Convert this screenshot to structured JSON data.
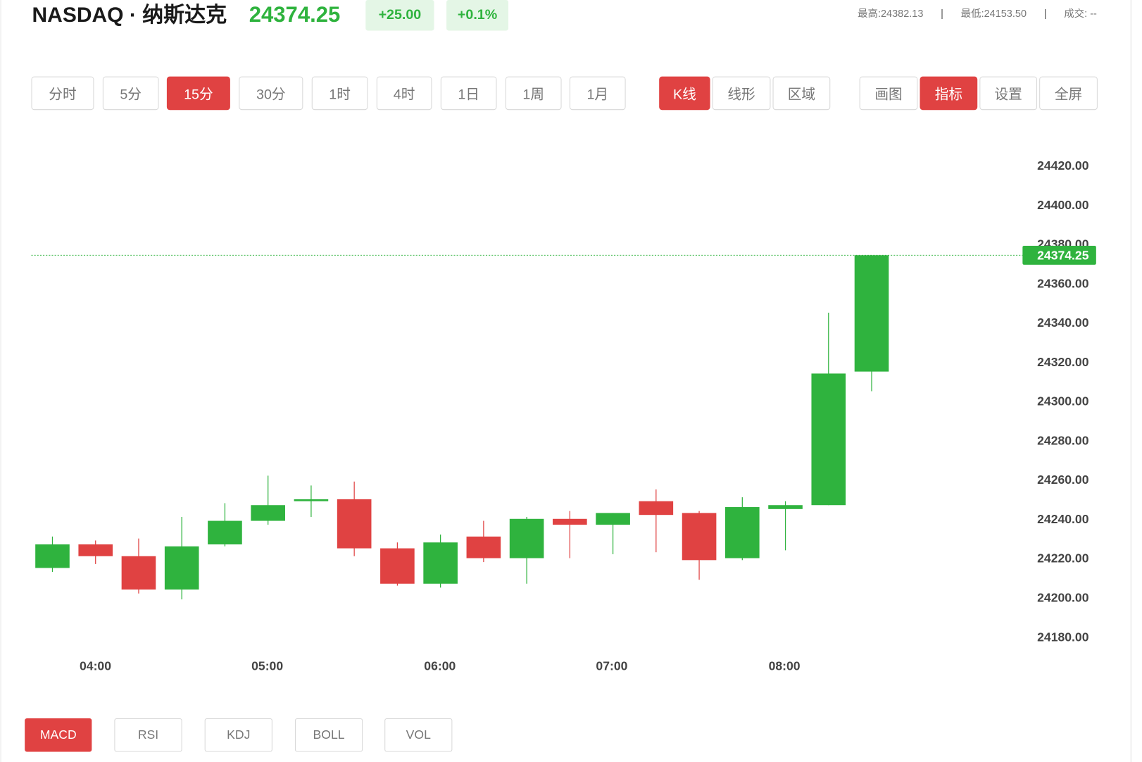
{
  "header": {
    "title": "NASDAQ · 纳斯达克",
    "price": "24374.25",
    "change": "+25.00",
    "change_pct": "+0.1%",
    "high_label": "最高:",
    "high_value": "24382.13",
    "low_label": "最低:",
    "low_value": "24153.50",
    "volume_label": "成交:",
    "volume_value": "--",
    "separator": "|"
  },
  "intervals": [
    "分时",
    "5分",
    "15分",
    "30分",
    "1时",
    "4时",
    "1日",
    "1周",
    "1月"
  ],
  "active_interval": "15分",
  "chart_types": [
    "K线",
    "线形",
    "区域"
  ],
  "active_chart_type": "K线",
  "tools": [
    "画图",
    "指标",
    "设置",
    "全屏"
  ],
  "active_tool": "指标",
  "indicators": [
    "MACD",
    "RSI",
    "KDJ",
    "BOLL",
    "VOL"
  ],
  "active_indicator": "MACD",
  "colors": {
    "up": "#2fb33e",
    "down": "#e04242",
    "accent": "#e04242"
  },
  "chart_data": {
    "type": "candlestick",
    "y_ticks": [
      "24420.00",
      "24400.00",
      "24380.00",
      "24360.00",
      "24340.00",
      "24320.00",
      "24300.00",
      "24280.00",
      "24260.00",
      "24240.00",
      "24220.00",
      "24200.00",
      "24180.00"
    ],
    "x_ticks": [
      "04:00",
      "05:00",
      "06:00",
      "07:00",
      "08:00"
    ],
    "ylim": [
      24180,
      24420
    ],
    "last_price": "24374.25",
    "candles": [
      {
        "time": "03:45",
        "open": 24215,
        "close": 24227,
        "high": 24231,
        "low": 24213
      },
      {
        "time": "04:00",
        "open": 24227,
        "close": 24221,
        "high": 24229,
        "low": 24217
      },
      {
        "time": "04:15",
        "open": 24221,
        "close": 24204,
        "high": 24230,
        "low": 24202
      },
      {
        "time": "04:30",
        "open": 24204,
        "close": 24226,
        "high": 24241,
        "low": 24199
      },
      {
        "time": "04:45",
        "open": 24227,
        "close": 24239,
        "high": 24248,
        "low": 24226
      },
      {
        "time": "05:00",
        "open": 24239,
        "close": 24247,
        "high": 24262,
        "low": 24237
      },
      {
        "time": "05:15",
        "open": 24249,
        "close": 24250,
        "high": 24257,
        "low": 24241
      },
      {
        "time": "05:30",
        "open": 24250,
        "close": 24225,
        "high": 24259,
        "low": 24221
      },
      {
        "time": "05:45",
        "open": 24225,
        "close": 24207,
        "high": 24228,
        "low": 24206
      },
      {
        "time": "06:00",
        "open": 24207,
        "close": 24228,
        "high": 24232,
        "low": 24205
      },
      {
        "time": "06:15",
        "open": 24231,
        "close": 24220,
        "high": 24239,
        "low": 24218
      },
      {
        "time": "06:30",
        "open": 24220,
        "close": 24240,
        "high": 24241,
        "low": 24207
      },
      {
        "time": "06:45",
        "open": 24240,
        "close": 24237,
        "high": 24244,
        "low": 24220
      },
      {
        "time": "07:00",
        "open": 24237,
        "close": 24243,
        "high": 24243,
        "low": 24222
      },
      {
        "time": "07:15",
        "open": 24249,
        "close": 24242,
        "high": 24255,
        "low": 24223
      },
      {
        "time": "07:30",
        "open": 24243,
        "close": 24219,
        "high": 24244,
        "low": 24209
      },
      {
        "time": "07:45",
        "open": 24220,
        "close": 24246,
        "high": 24251,
        "low": 24219
      },
      {
        "time": "08:00",
        "open": 24245,
        "close": 24247,
        "high": 24249,
        "low": 24224
      },
      {
        "time": "08:15",
        "open": 24247,
        "close": 24314,
        "high": 24345,
        "low": 24247
      },
      {
        "time": "08:30",
        "open": 24315,
        "close": 24374.25,
        "high": 24374.25,
        "low": 24305
      }
    ]
  }
}
